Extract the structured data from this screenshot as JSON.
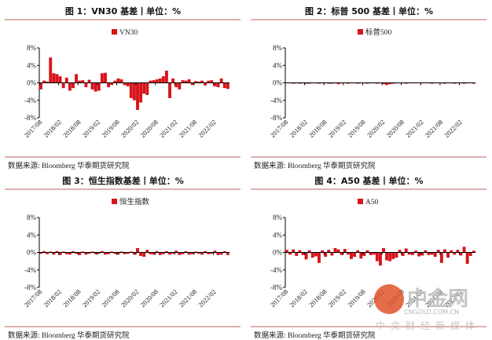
{
  "colors": {
    "bar": "#d7141b",
    "rule": "#c9817f",
    "axis": "#000"
  },
  "source_text": "数据来源:  Bloomberg  华泰期货研究院",
  "logo": {
    "name": "中金网",
    "domain": "CNGOLD.COM.CN",
    "tagline": "中文财经新媒体"
  },
  "chart_data": [
    {
      "type": "bar",
      "title": "图 1：VN30 基差丨单位：%",
      "legend": [
        "VN30"
      ],
      "legend_position": "top-center",
      "ylim": [
        -8,
        8
      ],
      "yticks": [
        "8%",
        "4%",
        "0%",
        "-4%",
        "-8%"
      ],
      "xticks": [
        "2017/08",
        "2018/02",
        "2018/08",
        "2019/02",
        "2019/08",
        "2020/02",
        "2020/08",
        "2021/02",
        "2021/08",
        "2022/02"
      ],
      "x": [
        "2017/08",
        "2017/09",
        "2017/10",
        "2017/11",
        "2017/12",
        "2018/01",
        "2018/02",
        "2018/03",
        "2018/04",
        "2018/05",
        "2018/06",
        "2018/07",
        "2018/08",
        "2018/09",
        "2018/10",
        "2018/11",
        "2018/12",
        "2019/01",
        "2019/02",
        "2019/03",
        "2019/04",
        "2019/05",
        "2019/06",
        "2019/07",
        "2019/08",
        "2019/09",
        "2019/10",
        "2019/11",
        "2019/12",
        "2020/01",
        "2020/02",
        "2020/03",
        "2020/04",
        "2020/05",
        "2020/06",
        "2020/07",
        "2020/08",
        "2020/09",
        "2020/10",
        "2020/11",
        "2020/12",
        "2021/01",
        "2021/02",
        "2021/03",
        "2021/04",
        "2021/05",
        "2021/06",
        "2021/07",
        "2021/08",
        "2021/09",
        "2021/10",
        "2021/11",
        "2021/12",
        "2022/01",
        "2022/02",
        "2022/03",
        "2022/04",
        "2022/05",
        "2022/06"
      ],
      "values": [
        -1.5,
        0.5,
        0.3,
        5.8,
        2.2,
        2.0,
        1.5,
        -1.2,
        1.2,
        -1.8,
        -1.2,
        2.0,
        0.5,
        0.6,
        -1.0,
        0.7,
        -1.5,
        -2.0,
        -1.8,
        2.2,
        2.3,
        -1.0,
        -0.5,
        0.5,
        1.0,
        0.8,
        -0.5,
        -0.8,
        -3.5,
        -4.0,
        -6.2,
        -4.5,
        -2.5,
        -2.8,
        0.5,
        0.6,
        0.8,
        1.0,
        1.5,
        2.8,
        -3.5,
        1.0,
        -1.0,
        -1.5,
        0.6,
        0.5,
        0.8,
        -0.5,
        0.4,
        0.3,
        0.5,
        -0.6,
        0.5,
        0.6,
        -0.8,
        -1.0,
        1.0,
        -1.2,
        -1.4
      ]
    },
    {
      "type": "bar",
      "title": "图 2：标普 500 基差丨单位：%",
      "legend": [
        "标普500"
      ],
      "legend_position": "top-center",
      "ylim": [
        -8,
        8
      ],
      "yticks": [
        "8%",
        "4%",
        "0%",
        "-4%",
        "-8%"
      ],
      "xticks": [
        "2017/08",
        "2018/02",
        "2018/08",
        "2019/02",
        "2019/08",
        "2020/02",
        "2020/08",
        "2021/02",
        "2021/08",
        "2022/02"
      ],
      "x": [
        "2017/08",
        "2017/09",
        "2017/10",
        "2017/11",
        "2017/12",
        "2018/01",
        "2018/02",
        "2018/03",
        "2018/04",
        "2018/05",
        "2018/06",
        "2018/07",
        "2018/08",
        "2018/09",
        "2018/10",
        "2018/11",
        "2018/12",
        "2019/01",
        "2019/02",
        "2019/03",
        "2019/04",
        "2019/05",
        "2019/06",
        "2019/07",
        "2019/08",
        "2019/09",
        "2019/10",
        "2019/11",
        "2019/12",
        "2020/01",
        "2020/02",
        "2020/03",
        "2020/04",
        "2020/05",
        "2020/06",
        "2020/07",
        "2020/08",
        "2020/09",
        "2020/10",
        "2020/11",
        "2020/12",
        "2021/01",
        "2021/02",
        "2021/03",
        "2021/04",
        "2021/05",
        "2021/06",
        "2021/07",
        "2021/08",
        "2021/09",
        "2021/10",
        "2021/11",
        "2021/12",
        "2022/01",
        "2022/02",
        "2022/03",
        "2022/04",
        "2022/05",
        "2022/06"
      ],
      "values": [
        -0.1,
        -0.1,
        -0.2,
        -0.1,
        -0.2,
        -0.1,
        -0.2,
        -0.2,
        -0.1,
        -0.1,
        -0.2,
        -0.1,
        -0.1,
        -0.2,
        -0.2,
        -0.1,
        -0.3,
        -0.1,
        -0.1,
        -0.2,
        -0.1,
        -0.1,
        -0.2,
        -0.1,
        -0.1,
        -0.2,
        -0.1,
        -0.1,
        -0.2,
        -0.1,
        -0.3,
        -0.5,
        -0.3,
        -0.2,
        -0.1,
        -0.1,
        -0.1,
        -0.2,
        -0.1,
        -0.1,
        -0.1,
        -0.1,
        -0.1,
        -0.1,
        -0.1,
        -0.2,
        -0.1,
        -0.1,
        -0.1,
        -0.2,
        -0.1,
        -0.1,
        -0.2,
        -0.1,
        -0.1,
        -0.2,
        -0.1,
        -0.1,
        -0.2
      ]
    },
    {
      "type": "bar",
      "title": "图 3：恒生指数基差丨单位：%",
      "legend": [
        "恒生指数"
      ],
      "legend_position": "top-center",
      "ylim": [
        -8,
        8
      ],
      "yticks": [
        "8%",
        "4%",
        "0%",
        "-4%",
        "-8%"
      ],
      "xticks": [
        "2017/08",
        "2018/02",
        "2018/08",
        "2019/02",
        "2019/08",
        "2020/02",
        "2020/08",
        "2021/02",
        "2021/08",
        "2022/02"
      ],
      "x": [
        "2017/08",
        "2017/09",
        "2017/10",
        "2017/11",
        "2017/12",
        "2018/01",
        "2018/02",
        "2018/03",
        "2018/04",
        "2018/05",
        "2018/06",
        "2018/07",
        "2018/08",
        "2018/09",
        "2018/10",
        "2018/11",
        "2018/12",
        "2019/01",
        "2019/02",
        "2019/03",
        "2019/04",
        "2019/05",
        "2019/06",
        "2019/07",
        "2019/08",
        "2019/09",
        "2019/10",
        "2019/11",
        "2019/12",
        "2020/01",
        "2020/02",
        "2020/03",
        "2020/04",
        "2020/05",
        "2020/06",
        "2020/07",
        "2020/08",
        "2020/09",
        "2020/10",
        "2020/11",
        "2020/12",
        "2021/01",
        "2021/02",
        "2021/03",
        "2021/04",
        "2021/05",
        "2021/06",
        "2021/07",
        "2021/08",
        "2021/09",
        "2021/10",
        "2021/11",
        "2021/12",
        "2022/01",
        "2022/02",
        "2022/03",
        "2022/04",
        "2022/05",
        "2022/06"
      ],
      "values": [
        -0.3,
        0.3,
        -0.4,
        0.2,
        -0.5,
        0.3,
        -0.6,
        0.2,
        -0.4,
        -0.5,
        0.3,
        -0.3,
        -0.6,
        0.2,
        -0.5,
        -0.3,
        0.2,
        -0.4,
        -0.3,
        0.3,
        -0.5,
        -0.4,
        0.2,
        -0.3,
        -0.5,
        0.2,
        -0.4,
        -0.3,
        0.2,
        -0.5,
        1.0,
        -0.8,
        -1.0,
        0.6,
        -0.4,
        -0.5,
        0.3,
        -0.6,
        -0.4,
        0.3,
        -0.5,
        -0.3,
        0.4,
        -0.6,
        -0.4,
        0.3,
        -0.5,
        -0.4,
        0.2,
        -0.3,
        -0.5,
        0.3,
        -0.4,
        -0.3,
        0.4,
        -0.6,
        -0.5,
        0.3,
        -0.6
      ]
    },
    {
      "type": "bar",
      "title": "图 4：A50 基差丨单位：%",
      "legend": [
        "A50"
      ],
      "legend_position": "top-center",
      "ylim": [
        -8,
        8
      ],
      "yticks": [
        "8%",
        "4%",
        "0%",
        "-4%",
        "-8%"
      ],
      "xticks": [
        "2017/08",
        "2018/02",
        "2018/08",
        "2019/02",
        "2019/08",
        "2020/02",
        "2020/08",
        "2021/02",
        "2021/08",
        "2022/02"
      ],
      "x": [
        "2017/08",
        "2017/09",
        "2017/10",
        "2017/11",
        "2017/12",
        "2018/01",
        "2018/02",
        "2018/03",
        "2018/04",
        "2018/05",
        "2018/06",
        "2018/07",
        "2018/08",
        "2018/09",
        "2018/10",
        "2018/11",
        "2018/12",
        "2019/01",
        "2019/02",
        "2019/03",
        "2019/04",
        "2019/05",
        "2019/06",
        "2019/07",
        "2019/08",
        "2019/09",
        "2019/10",
        "2019/11",
        "2019/12",
        "2020/01",
        "2020/02",
        "2020/03",
        "2020/04",
        "2020/05",
        "2020/06",
        "2020/07",
        "2020/08",
        "2020/09",
        "2020/10",
        "2020/11",
        "2020/12",
        "2021/01",
        "2021/02",
        "2021/03",
        "2021/04",
        "2021/05",
        "2021/06",
        "2021/07",
        "2021/08",
        "2021/09",
        "2021/10",
        "2021/11",
        "2021/12",
        "2022/01",
        "2022/02",
        "2022/03",
        "2022/04",
        "2022/05",
        "2022/06"
      ],
      "values": [
        0.6,
        -0.5,
        0.7,
        -0.8,
        0.5,
        -0.6,
        -1.6,
        0.5,
        -1.2,
        -0.9,
        -2.4,
        0.5,
        -1.0,
        0.6,
        -0.7,
        1.0,
        0.7,
        -0.6,
        0.8,
        -0.5,
        -1.5,
        -1.0,
        0.5,
        -1.4,
        -0.8,
        0.5,
        -0.6,
        -0.5,
        -2.0,
        -3.0,
        1.0,
        -1.8,
        -2.0,
        -1.5,
        -1.2,
        0.6,
        -0.8,
        0.9,
        -0.5,
        -0.6,
        0.4,
        -0.9,
        -0.7,
        0.5,
        -0.6,
        -0.5,
        -1.0,
        0.6,
        -2.4,
        0.7,
        -1.2,
        0.5,
        -0.5,
        0.6,
        -0.7,
        1.3,
        -2.6,
        -0.8,
        0.4
      ]
    }
  ]
}
